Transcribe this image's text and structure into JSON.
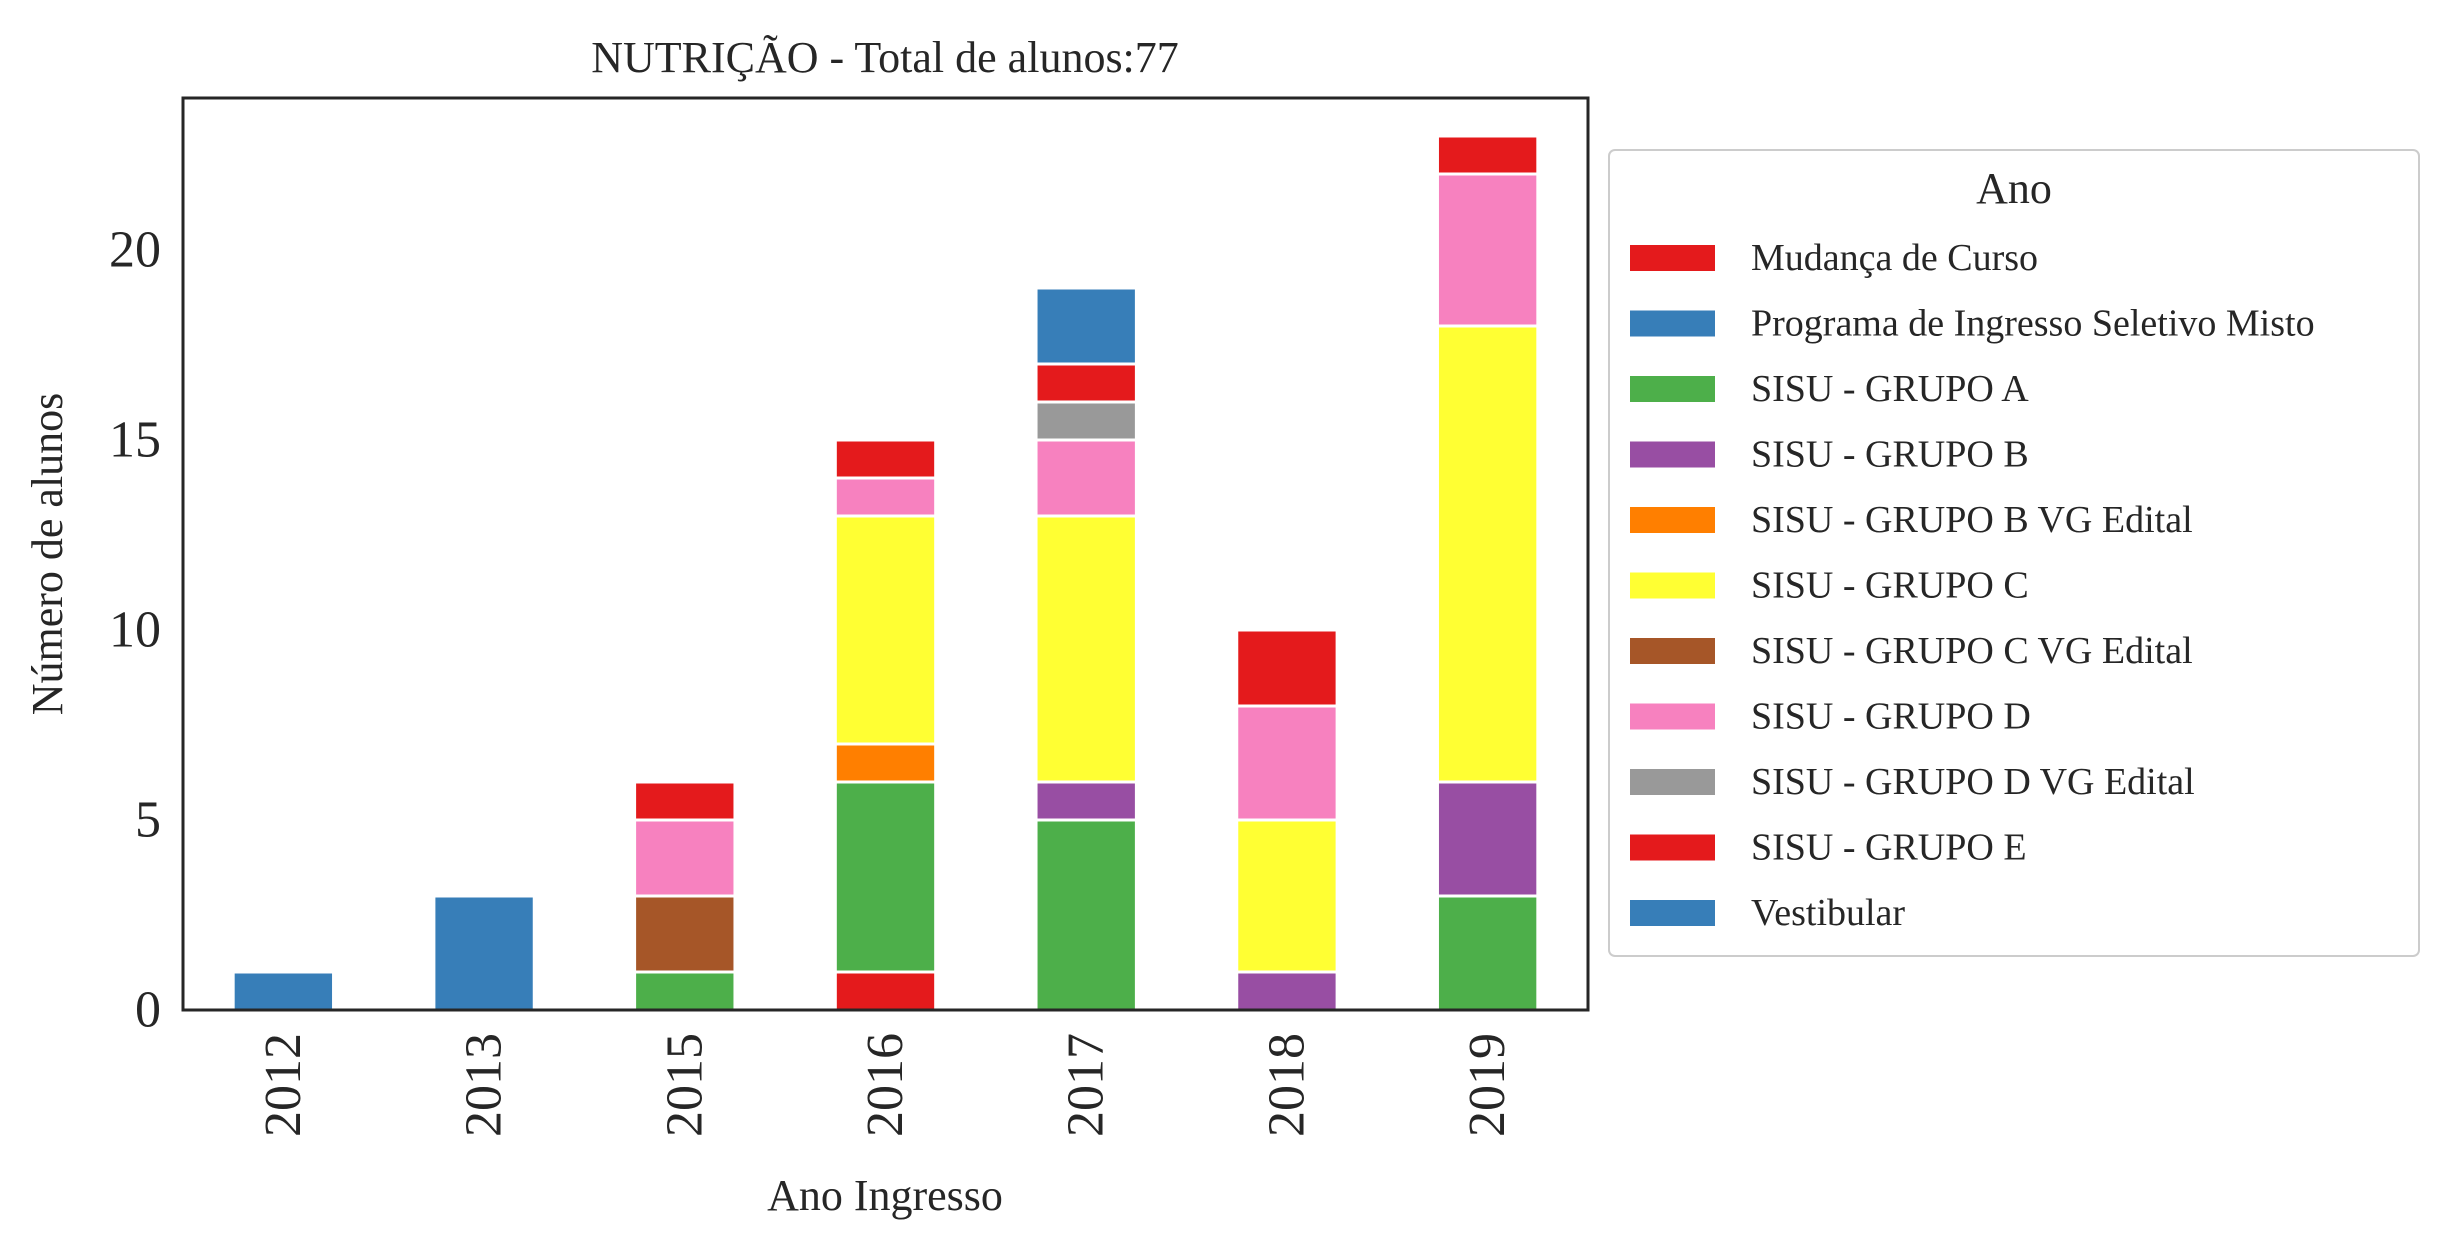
{
  "chart_data": {
    "type": "bar",
    "stacked": true,
    "title": "NUTRIÇÃO - Total de alunos:77",
    "xlabel": "Ano Ingresso",
    "ylabel": "Número de alunos",
    "categories": [
      "2012",
      "2013",
      "2015",
      "2016",
      "2017",
      "2018",
      "2019"
    ],
    "ylim": [
      0,
      24
    ],
    "yticks": [
      0,
      5,
      10,
      15,
      20
    ],
    "grid": false,
    "legend": {
      "title": "Ano",
      "placement": "outside-right"
    },
    "series": [
      {
        "name": "Mudança de Curso",
        "color": "#e41a1c",
        "values": [
          0,
          0,
          0,
          1,
          0,
          0,
          0
        ]
      },
      {
        "name": "Programa de Ingresso Seletivo Misto",
        "color": "#377eb8",
        "values": [
          0,
          0,
          0,
          0,
          0,
          0,
          0
        ]
      },
      {
        "name": "SISU - GRUPO A",
        "color": "#4daf4a",
        "values": [
          0,
          0,
          1,
          5,
          5,
          0,
          3
        ]
      },
      {
        "name": "SISU - GRUPO B",
        "color": "#984ea3",
        "values": [
          0,
          0,
          0,
          0,
          1,
          1,
          3
        ]
      },
      {
        "name": "SISU - GRUPO B VG Edital",
        "color": "#ff7f00",
        "values": [
          0,
          0,
          0,
          1,
          0,
          0,
          0
        ]
      },
      {
        "name": "SISU - GRUPO C",
        "color": "#ffff33",
        "values": [
          0,
          0,
          0,
          6,
          7,
          4,
          12
        ]
      },
      {
        "name": "SISU - GRUPO C VG Edital",
        "color": "#a65628",
        "values": [
          0,
          0,
          2,
          0,
          0,
          0,
          0
        ]
      },
      {
        "name": "SISU - GRUPO D",
        "color": "#f781bf",
        "values": [
          0,
          0,
          2,
          1,
          2,
          3,
          4
        ]
      },
      {
        "name": "SISU - GRUPO D VG Edital",
        "color": "#999999",
        "values": [
          0,
          0,
          0,
          0,
          1,
          0,
          0
        ]
      },
      {
        "name": "SISU - GRUPO E",
        "color": "#e41a1c",
        "values": [
          0,
          0,
          1,
          1,
          1,
          2,
          1
        ]
      },
      {
        "name": "Vestibular",
        "color": "#377eb8",
        "values": [
          1,
          3,
          0,
          0,
          2,
          0,
          0
        ]
      }
    ]
  }
}
